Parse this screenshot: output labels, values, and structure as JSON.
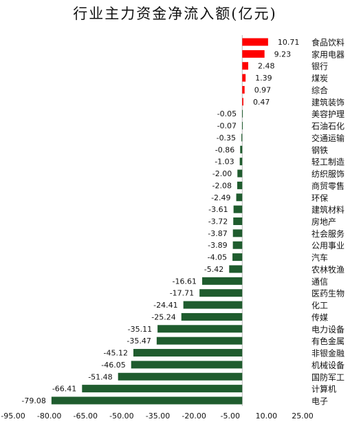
{
  "chart_data": {
    "type": "bar",
    "orientation": "horizontal",
    "title": "行业主力资金净流入额(亿元)",
    "xlim": [
      -95,
      25
    ],
    "xticks": [
      "-95.00",
      "-80.00",
      "-65.00",
      "-50.00",
      "-35.00",
      "-20.00",
      "-5.00",
      "10.00",
      "25.00"
    ],
    "xtick_values": [
      -95,
      -80,
      -65,
      -50,
      -35,
      -20,
      -5,
      10,
      25
    ],
    "categories": [
      "食品饮料",
      "家用电器",
      "银行",
      "煤炭",
      "综合",
      "建筑装饰",
      "美容护理",
      "石油石化",
      "交通运输",
      "钢铁",
      "轻工制造",
      "纺织服饰",
      "商贸零售",
      "环保",
      "建筑材料",
      "房地产",
      "社会服务",
      "公用事业",
      "汽车",
      "农林牧渔",
      "通信",
      "医药生物",
      "化工",
      "传媒",
      "电力设备",
      "有色金属",
      "非银金融",
      "机械设备",
      "国防军工",
      "计算机",
      "电子"
    ],
    "values": [
      10.71,
      9.23,
      2.48,
      1.39,
      0.97,
      0.47,
      -0.05,
      -0.07,
      -0.35,
      -0.86,
      -1.03,
      -2.0,
      -2.08,
      -2.49,
      -3.61,
      -3.72,
      -3.87,
      -3.89,
      -4.05,
      -5.42,
      -16.61,
      -17.71,
      -24.41,
      -25.24,
      -35.11,
      -35.47,
      -45.12,
      -46.05,
      -51.48,
      -66.41,
      -79.08
    ],
    "value_labels": [
      "10.71",
      "9.23",
      "2.48",
      "1.39",
      "0.97",
      "0.47",
      "-0.05",
      "-0.07",
      "-0.35",
      "-0.86",
      "-1.03",
      "-2.00",
      "-2.08",
      "-2.49",
      "-3.61",
      "-3.72",
      "-3.87",
      "-3.89",
      "-4.05",
      "-5.42",
      "-16.61",
      "-17.71",
      "-24.41",
      "-25.24",
      "-35.11",
      "-35.47",
      "-45.12",
      "-46.05",
      "-51.48",
      "-66.41",
      "-79.08"
    ],
    "colors": {
      "positive": "#ff0000",
      "negative": "#1f5c2e"
    },
    "grid": false,
    "legend": "none"
  }
}
